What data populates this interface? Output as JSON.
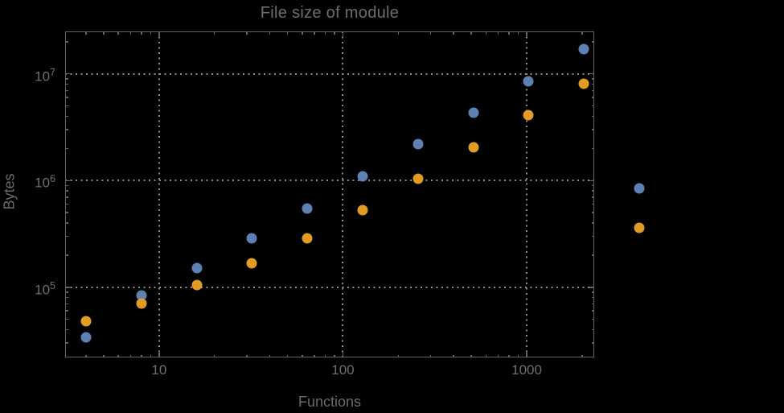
{
  "colors": {
    "background": "#000000",
    "frame": "#646464",
    "grid": "#8c8c8c",
    "text": "#6f6f6f",
    "series_blue": "#5e81b5",
    "series_orange": "#e19c24"
  },
  "chart_data": {
    "type": "scatter",
    "title": "File size of module",
    "xlabel": "Functions",
    "ylabel": "Bytes",
    "x_scale": "log",
    "y_scale": "log",
    "xlim": [
      3.08,
      2330
    ],
    "ylim": [
      22000,
      25000000
    ],
    "grid": "major-only, dotted gray",
    "legend": "none",
    "x_major_ticks": [
      10,
      100,
      1000
    ],
    "x_major_labels": [
      "10",
      "100",
      "1000"
    ],
    "x_minor_ticks": [
      4,
      5,
      6,
      7,
      8,
      9,
      20,
      30,
      40,
      50,
      60,
      70,
      80,
      90,
      200,
      300,
      400,
      500,
      600,
      700,
      800,
      900,
      2000
    ],
    "y_major_ticks": [
      100000,
      1000000,
      10000000
    ],
    "y_major_base": "10",
    "y_major_exponents": [
      "5",
      "6",
      "7"
    ],
    "y_minor_ticks": [
      30000,
      40000,
      50000,
      60000,
      70000,
      80000,
      90000,
      200000,
      300000,
      400000,
      500000,
      600000,
      700000,
      800000,
      900000,
      2000000,
      3000000,
      4000000,
      5000000,
      6000000,
      7000000,
      8000000,
      9000000,
      20000000
    ],
    "series": [
      {
        "name": "blue",
        "color": "#5e81b5",
        "points": [
          [
            4,
            34000
          ],
          [
            8,
            84000
          ],
          [
            16,
            152000
          ],
          [
            32,
            288000
          ],
          [
            64,
            550000
          ],
          [
            128,
            1100000
          ],
          [
            256,
            2200000
          ],
          [
            512,
            4350000
          ],
          [
            1024,
            8550000
          ],
          [
            2048,
            17100000
          ],
          [
            4096,
            850000
          ]
        ]
      },
      {
        "name": "orange",
        "color": "#e19c24",
        "points": [
          [
            4,
            48000
          ],
          [
            8,
            70000
          ],
          [
            16,
            105000
          ],
          [
            32,
            168000
          ],
          [
            64,
            290000
          ],
          [
            128,
            530000
          ],
          [
            256,
            1040000
          ],
          [
            512,
            2050000
          ],
          [
            1024,
            4100000
          ],
          [
            2048,
            8100000
          ],
          [
            4096,
            360000
          ]
        ]
      }
    ]
  }
}
